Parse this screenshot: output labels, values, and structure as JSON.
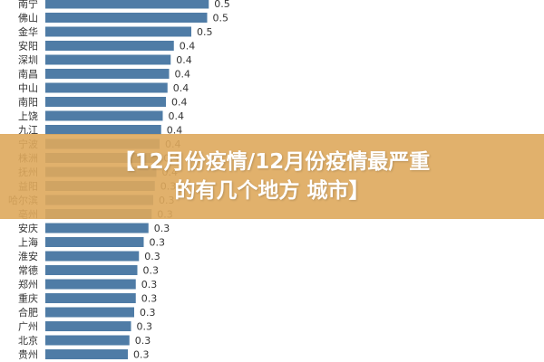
{
  "chart_data": {
    "type": "bar",
    "orientation": "horizontal",
    "categories": [
      "南宁",
      "佛山",
      "金华",
      "安阳",
      "深圳",
      "南昌",
      "中山",
      "南阳",
      "上饶",
      "九江",
      "宁波",
      "株洲",
      "抚州",
      "益阳",
      "哈尔滨",
      "亳州",
      "安庆",
      "上海",
      "淮安",
      "常德",
      "郑州",
      "重庆",
      "合肥",
      "广州",
      "北京",
      "贵州"
    ],
    "values": [
      0.5,
      0.5,
      0.5,
      0.4,
      0.4,
      0.4,
      0.4,
      0.4,
      0.4,
      0.4,
      0.4,
      0.4,
      0.4,
      0.3,
      0.3,
      0.3,
      0.3,
      0.3,
      0.3,
      0.3,
      0.3,
      0.3,
      0.3,
      0.3,
      0.3,
      0.3
    ],
    "lengths": [
      0.515,
      0.51,
      0.46,
      0.405,
      0.395,
      0.39,
      0.385,
      0.38,
      0.37,
      0.365,
      0.36,
      0.355,
      0.35,
      0.345,
      0.34,
      0.335,
      0.325,
      0.31,
      0.295,
      0.29,
      0.285,
      0.285,
      0.28,
      0.27,
      0.265,
      0.26
    ],
    "labels": [
      "0.5",
      "0.5",
      "0.5",
      "0.4",
      "0.4",
      "0.4",
      "0.4",
      "0.4",
      "0.4",
      "0.4",
      "0.4",
      "0.4",
      "0.4",
      "0.3",
      "0.3",
      "0.3",
      "0.3",
      "0.3",
      "0.3",
      "0.3",
      "0.3",
      "0.3",
      "0.3",
      "0.3",
      "0.3",
      "0.3"
    ],
    "bar_color": "#4f7ca6"
  },
  "banner": {
    "line1": "【12月份疫情/12月份疫情最严重",
    "line2": "的有几个地方 城市】",
    "color": "#dea85c"
  }
}
